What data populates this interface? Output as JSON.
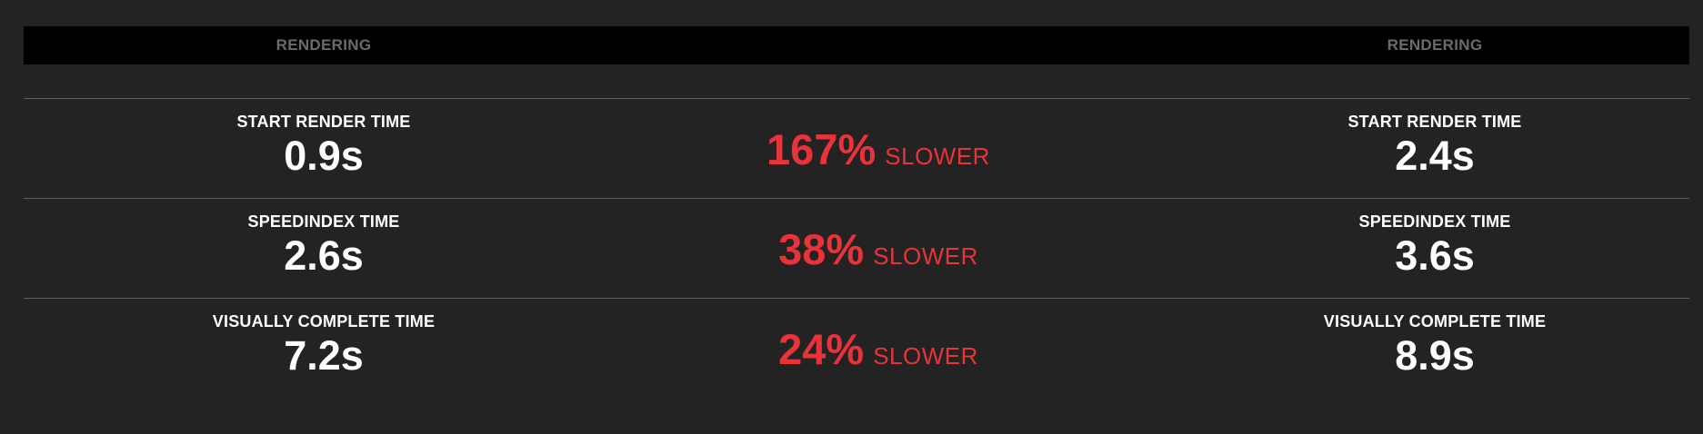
{
  "header": {
    "left_label": "RENDERING",
    "right_label": "RENDERING"
  },
  "rows": [
    {
      "left": {
        "label": "START RENDER TIME",
        "value": "0.9s"
      },
      "delta": {
        "percent": "167%",
        "word": "SLOWER"
      },
      "right": {
        "label": "START RENDER TIME",
        "value": "2.4s"
      }
    },
    {
      "left": {
        "label": "SPEEDINDEX TIME",
        "value": "2.6s"
      },
      "delta": {
        "percent": "38%",
        "word": "SLOWER"
      },
      "right": {
        "label": "SPEEDINDEX TIME",
        "value": "3.6s"
      }
    },
    {
      "left": {
        "label": "VISUALLY COMPLETE TIME",
        "value": "7.2s"
      },
      "delta": {
        "percent": "24%",
        "word": "SLOWER"
      },
      "right": {
        "label": "VISUALLY COMPLETE TIME",
        "value": "8.9s"
      }
    }
  ],
  "colors": {
    "background": "#232323",
    "header_bar": "#000000",
    "header_text": "#6b6b6b",
    "delta_text": "#e8333a",
    "divider": "#5e5e5e"
  }
}
